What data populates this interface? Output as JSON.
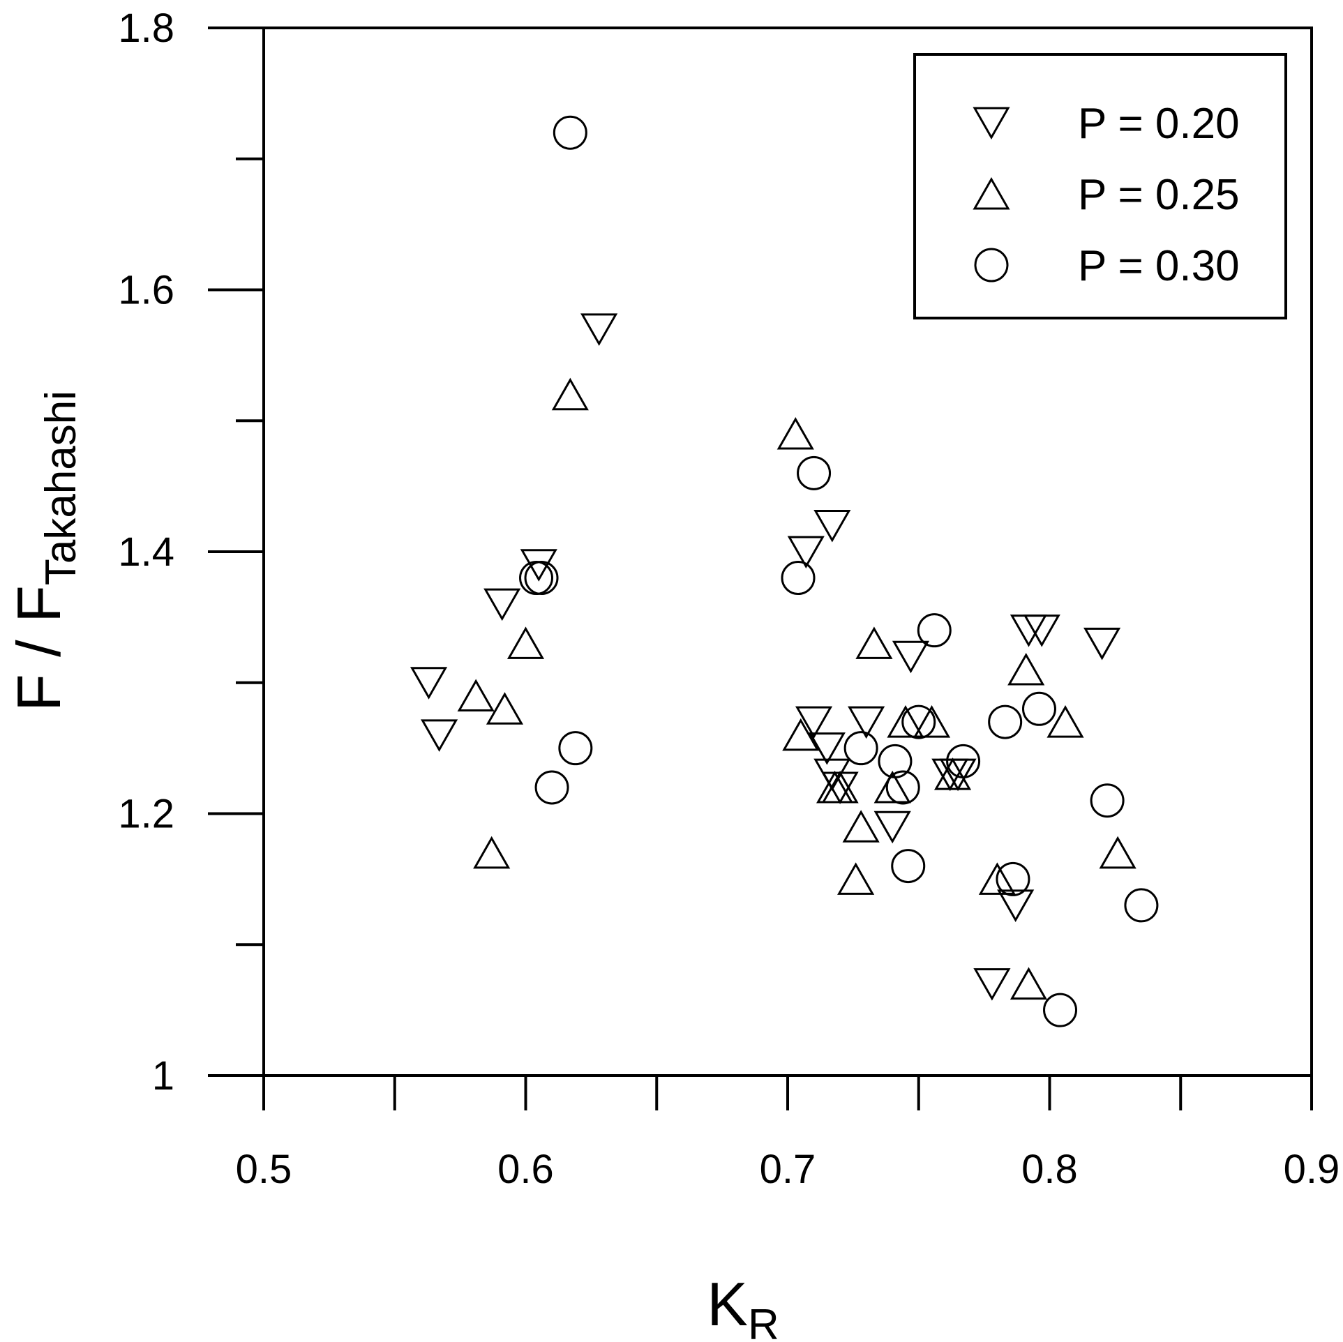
{
  "chart_data": {
    "type": "scatter",
    "xlabel": "K",
    "xlabel_sub": "R",
    "ylabel": "F / F",
    "ylabel_sub": "Takahashi",
    "xlim": [
      0.5,
      0.9
    ],
    "ylim": [
      1.0,
      1.8
    ],
    "x_ticks": [
      "0.5",
      "0.6",
      "0.7",
      "0.8",
      "0.9"
    ],
    "x_tick_values": [
      0.5,
      0.6,
      0.7,
      0.8,
      0.9
    ],
    "x_minor_ticks": [
      0.55,
      0.65,
      0.75,
      0.85
    ],
    "y_ticks": [
      "1",
      "1.2",
      "1.4",
      "1.6",
      "1.8"
    ],
    "y_tick_values": [
      1.0,
      1.2,
      1.4,
      1.6,
      1.8
    ],
    "y_minor_ticks": [
      1.1,
      1.3,
      1.5,
      1.7
    ],
    "grid": false,
    "legend_position": "top-right",
    "series": [
      {
        "name": "P = 0.20",
        "marker": "triangle-down",
        "points": [
          [
            0.563,
            1.3
          ],
          [
            0.567,
            1.26
          ],
          [
            0.591,
            1.36
          ],
          [
            0.605,
            1.39
          ],
          [
            0.628,
            1.57
          ],
          [
            0.707,
            1.4
          ],
          [
            0.717,
            1.42
          ],
          [
            0.71,
            1.27
          ],
          [
            0.715,
            1.25
          ],
          [
            0.717,
            1.23
          ],
          [
            0.72,
            1.22
          ],
          [
            0.73,
            1.27
          ],
          [
            0.74,
            1.19
          ],
          [
            0.747,
            1.32
          ],
          [
            0.762,
            1.23
          ],
          [
            0.765,
            1.23
          ],
          [
            0.778,
            1.07
          ],
          [
            0.787,
            1.13
          ],
          [
            0.792,
            1.34
          ],
          [
            0.797,
            1.34
          ],
          [
            0.82,
            1.33
          ]
        ]
      },
      {
        "name": "P = 0.25",
        "marker": "triangle-up",
        "points": [
          [
            0.581,
            1.29
          ],
          [
            0.587,
            1.17
          ],
          [
            0.592,
            1.28
          ],
          [
            0.6,
            1.33
          ],
          [
            0.617,
            1.52
          ],
          [
            0.703,
            1.49
          ],
          [
            0.705,
            1.26
          ],
          [
            0.718,
            1.22
          ],
          [
            0.72,
            1.22
          ],
          [
            0.726,
            1.15
          ],
          [
            0.728,
            1.19
          ],
          [
            0.733,
            1.33
          ],
          [
            0.74,
            1.22
          ],
          [
            0.745,
            1.27
          ],
          [
            0.755,
            1.27
          ],
          [
            0.763,
            1.23
          ],
          [
            0.78,
            1.15
          ],
          [
            0.791,
            1.31
          ],
          [
            0.792,
            1.07
          ],
          [
            0.806,
            1.27
          ],
          [
            0.826,
            1.17
          ]
        ]
      },
      {
        "name": "P = 0.30",
        "marker": "circle",
        "points": [
          [
            0.604,
            1.38
          ],
          [
            0.606,
            1.38
          ],
          [
            0.61,
            1.22
          ],
          [
            0.617,
            1.72
          ],
          [
            0.619,
            1.25
          ],
          [
            0.704,
            1.38
          ],
          [
            0.71,
            1.46
          ],
          [
            0.728,
            1.25
          ],
          [
            0.741,
            1.24
          ],
          [
            0.744,
            1.22
          ],
          [
            0.746,
            1.16
          ],
          [
            0.75,
            1.27
          ],
          [
            0.756,
            1.34
          ],
          [
            0.767,
            1.24
          ],
          [
            0.783,
            1.27
          ],
          [
            0.786,
            1.15
          ],
          [
            0.796,
            1.28
          ],
          [
            0.804,
            1.05
          ],
          [
            0.822,
            1.21
          ],
          [
            0.835,
            1.13
          ]
        ]
      }
    ]
  }
}
